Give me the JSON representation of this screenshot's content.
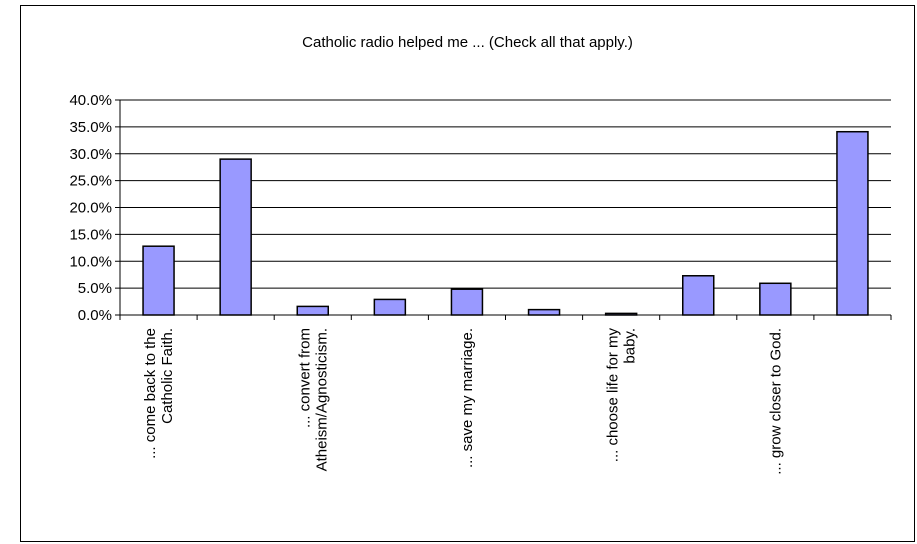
{
  "chart_data": {
    "type": "bar",
    "title": "Catholic radio helped me ... (Check all that apply.)",
    "xlabel": "",
    "ylabel": "",
    "ylim": [
      0,
      40
    ],
    "y_ticks": [
      "0.0%",
      "5.0%",
      "10.0%",
      "15.0%",
      "20.0%",
      "25.0%",
      "30.0%",
      "35.0%",
      "40.0%"
    ],
    "grid": true,
    "legend": "none",
    "categories": [
      "... come back to the Catholic Faith.",
      "",
      "... convert from Atheism/Agnosticism.",
      "",
      "... save my marriage.",
      "",
      "... choose life for my baby.",
      "",
      "... grow closer to God.",
      ""
    ],
    "category_label_lines": [
      [
        "... come back to the",
        "Catholic Faith."
      ],
      [],
      [
        "... convert from",
        "Atheism/Agnosticism."
      ],
      [],
      [
        "... save my marriage."
      ],
      [],
      [
        "... choose life for my",
        "baby."
      ],
      [],
      [
        "... grow closer to God."
      ],
      []
    ],
    "values": [
      12.8,
      29.0,
      1.6,
      2.9,
      4.8,
      1.0,
      0.3,
      7.3,
      5.9,
      34.1
    ],
    "colors": {
      "bar_fill": "#9999ff",
      "bar_stroke": "#000000",
      "grid": "#000000",
      "axis": "#000000"
    }
  }
}
